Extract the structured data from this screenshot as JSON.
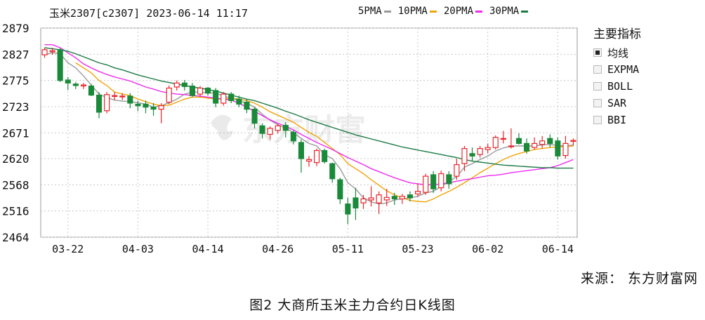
{
  "header": {
    "title": "玉米2307[c2307] 2023-06-14 11:17"
  },
  "legend": [
    {
      "name": "5PMA",
      "color": "#9a9a9a"
    },
    {
      "name": "10PMA",
      "color": "#f0a30a"
    },
    {
      "name": "20PMA",
      "color": "#ee2cee"
    },
    {
      "name": "30PMA",
      "color": "#1d7a45"
    }
  ],
  "side_panel": {
    "title": "主要指标",
    "items": [
      {
        "label": "均线",
        "checked": true
      },
      {
        "label": "EXPMA",
        "checked": false
      },
      {
        "label": "BOLL",
        "checked": false
      },
      {
        "label": "SAR",
        "checked": false
      },
      {
        "label": "BBI",
        "checked": false
      }
    ]
  },
  "watermark": "东方财富",
  "source": "来源： 东方财富网",
  "caption": "图2 大商所玉米主力合约日K线图",
  "colors": {
    "up": "#e8262c",
    "down": "#1a8a3a",
    "grid": "#c8c8c8"
  },
  "chart_data": {
    "type": "candlestick",
    "ylim": [
      2464,
      2879
    ],
    "yticks": [
      2879,
      2827,
      2775,
      2723,
      2671,
      2620,
      2568,
      2516,
      2464
    ],
    "xticks": [
      "03-22",
      "04-03",
      "04-14",
      "04-26",
      "05-11",
      "05-23",
      "06-02",
      "06-14"
    ],
    "xtick_index": [
      3,
      12,
      21,
      30,
      39,
      48,
      57,
      66
    ],
    "candles": [
      [
        2826,
        2836,
        2820,
        2840
      ],
      [
        2832,
        2834,
        2826,
        2840
      ],
      [
        2836,
        2775,
        2772,
        2840
      ],
      [
        2776,
        2770,
        2756,
        2782
      ],
      [
        2768,
        2765,
        2758,
        2772
      ],
      [
        2764,
        2766,
        2758,
        2770
      ],
      [
        2764,
        2746,
        2744,
        2768
      ],
      [
        2746,
        2712,
        2700,
        2752
      ],
      [
        2715,
        2747,
        2710,
        2752
      ],
      [
        2744,
        2745,
        2736,
        2752
      ],
      [
        2743,
        2744,
        2736,
        2750
      ],
      [
        2744,
        2730,
        2720,
        2750
      ],
      [
        2728,
        2725,
        2714,
        2735
      ],
      [
        2728,
        2722,
        2710,
        2735
      ],
      [
        2722,
        2718,
        2705,
        2730
      ],
      [
        2718,
        2725,
        2690,
        2730
      ],
      [
        2732,
        2760,
        2728,
        2765
      ],
      [
        2762,
        2770,
        2755,
        2775
      ],
      [
        2770,
        2763,
        2755,
        2776
      ],
      [
        2764,
        2745,
        2742,
        2770
      ],
      [
        2748,
        2760,
        2742,
        2764
      ],
      [
        2760,
        2750,
        2745,
        2762
      ],
      [
        2755,
        2730,
        2722,
        2760
      ],
      [
        2730,
        2748,
        2725,
        2752
      ],
      [
        2748,
        2735,
        2730,
        2752
      ],
      [
        2738,
        2728,
        2722,
        2745
      ],
      [
        2732,
        2718,
        2710,
        2738
      ],
      [
        2718,
        2690,
        2680,
        2722
      ],
      [
        2685,
        2670,
        2660,
        2690
      ],
      [
        2668,
        2680,
        2658,
        2684
      ],
      [
        2676,
        2685,
        2670,
        2688
      ],
      [
        2686,
        2676,
        2662,
        2692
      ],
      [
        2672,
        2655,
        2648,
        2676
      ],
      [
        2652,
        2620,
        2592,
        2658
      ],
      [
        2615,
        2618,
        2604,
        2625
      ],
      [
        2612,
        2636,
        2605,
        2640
      ],
      [
        2636,
        2614,
        2610,
        2640
      ],
      [
        2610,
        2580,
        2572,
        2612
      ],
      [
        2578,
        2540,
        2530,
        2582
      ],
      [
        2530,
        2510,
        2490,
        2542
      ],
      [
        2542,
        2522,
        2498,
        2562
      ],
      [
        2532,
        2540,
        2520,
        2548
      ],
      [
        2538,
        2542,
        2525,
        2565
      ],
      [
        2532,
        2548,
        2510,
        2555
      ],
      [
        2538,
        2543,
        2526,
        2560
      ],
      [
        2545,
        2540,
        2528,
        2552
      ],
      [
        2540,
        2545,
        2530,
        2550
      ],
      [
        2548,
        2542,
        2535,
        2555
      ],
      [
        2550,
        2555,
        2545,
        2570
      ],
      [
        2553,
        2585,
        2548,
        2590
      ],
      [
        2588,
        2560,
        2552,
        2595
      ],
      [
        2562,
        2590,
        2555,
        2596
      ],
      [
        2588,
        2570,
        2560,
        2595
      ],
      [
        2585,
        2608,
        2578,
        2620
      ],
      [
        2610,
        2640,
        2595,
        2645
      ],
      [
        2630,
        2625,
        2615,
        2642
      ],
      [
        2628,
        2640,
        2622,
        2645
      ],
      [
        2638,
        2642,
        2630,
        2650
      ],
      [
        2642,
        2662,
        2638,
        2666
      ],
      [
        2660,
        2660,
        2650,
        2675
      ],
      [
        2645,
        2645,
        2640,
        2680
      ],
      [
        2660,
        2650,
        2648,
        2670
      ],
      [
        2650,
        2635,
        2630,
        2660
      ],
      [
        2642,
        2650,
        2638,
        2662
      ],
      [
        2648,
        2655,
        2640,
        2665
      ],
      [
        2660,
        2650,
        2642,
        2668
      ],
      [
        2655,
        2625,
        2618,
        2662
      ],
      [
        2626,
        2650,
        2620,
        2665
      ],
      [
        2654,
        2656,
        2646,
        2660
      ]
    ],
    "series": [
      {
        "name": "5PMA",
        "values": [
          2826,
          2830,
          2828,
          2810,
          2800,
          2784,
          2766,
          2748,
          2741,
          2736,
          2734,
          2733,
          2731,
          2728,
          2722,
          2725,
          2731,
          2738,
          2748,
          2752,
          2752,
          2750,
          2750,
          2744,
          2740,
          2735,
          2730,
          2722,
          2708,
          2696,
          2687,
          2680,
          2672,
          2660,
          2650,
          2645,
          2628,
          2620,
          2600,
          2572,
          2560,
          2542,
          2534,
          2530,
          2532,
          2538,
          2540,
          2542,
          2545,
          2552,
          2555,
          2565,
          2575,
          2584,
          2603,
          2610,
          2618,
          2625,
          2635,
          2641,
          2645,
          2645,
          2645,
          2645,
          2647,
          2648,
          2646,
          2645,
          2647
        ]
      },
      {
        "name": "10PMA",
        "values": [
          null,
          null,
          null,
          null,
          2810,
          2800,
          2790,
          2775,
          2765,
          2752,
          2748,
          2745,
          2738,
          2733,
          2728,
          2725,
          2726,
          2732,
          2738,
          2742,
          2742,
          2740,
          2738,
          2738,
          2740,
          2738,
          2735,
          2730,
          2722,
          2713,
          2706,
          2699,
          2692,
          2682,
          2672,
          2664,
          2652,
          2640,
          2628,
          2610,
          2600,
          2590,
          2578,
          2567,
          2556,
          2548,
          2542,
          2537,
          2535,
          2534,
          2540,
          2548,
          2555,
          2563,
          2572,
          2582,
          2592,
          2601,
          2610,
          2618,
          2625,
          2630,
          2634,
          2638,
          2640,
          2642,
          2643,
          2644,
          2645
        ]
      },
      {
        "name": "20PMA",
        "values": [
          2846,
          2846,
          2840,
          2830,
          2820,
          2808,
          2800,
          2793,
          2787,
          2782,
          2778,
          2774,
          2768,
          2762,
          2758,
          2753,
          2750,
          2748,
          2747,
          2745,
          2744,
          2742,
          2740,
          2738,
          2736,
          2730,
          2722,
          2714,
          2705,
          2697,
          2690,
          2684,
          2677,
          2668,
          2660,
          2652,
          2645,
          2638,
          2630,
          2622,
          2615,
          2608,
          2600,
          2594,
          2588,
          2582,
          2577,
          2572,
          2570,
          2568,
          2568,
          2570,
          2572,
          2575,
          2578,
          2580,
          2583,
          2586,
          2587,
          2589,
          2592,
          2594,
          2596,
          2598,
          2600,
          2602,
          2606,
          2612,
          2618
        ]
      },
      {
        "name": "30PMA",
        "values": [
          2840,
          2838,
          2836,
          2833,
          2828,
          2822,
          2816,
          2810,
          2806,
          2800,
          2796,
          2791,
          2786,
          2782,
          2778,
          2774,
          2771,
          2768,
          2765,
          2762,
          2760,
          2757,
          2754,
          2750,
          2746,
          2742,
          2738,
          2735,
          2730,
          2725,
          2720,
          2714,
          2709,
          2703,
          2697,
          2692,
          2687,
          2682,
          2677,
          2672,
          2667,
          2663,
          2659,
          2655,
          2651,
          2647,
          2643,
          2640,
          2637,
          2634,
          2631,
          2628,
          2625,
          2622,
          2618,
          2615,
          2613,
          2611,
          2609,
          2607,
          2606,
          2605,
          2604,
          2603,
          2602,
          2602,
          2601,
          2601,
          2601
        ]
      }
    ]
  }
}
